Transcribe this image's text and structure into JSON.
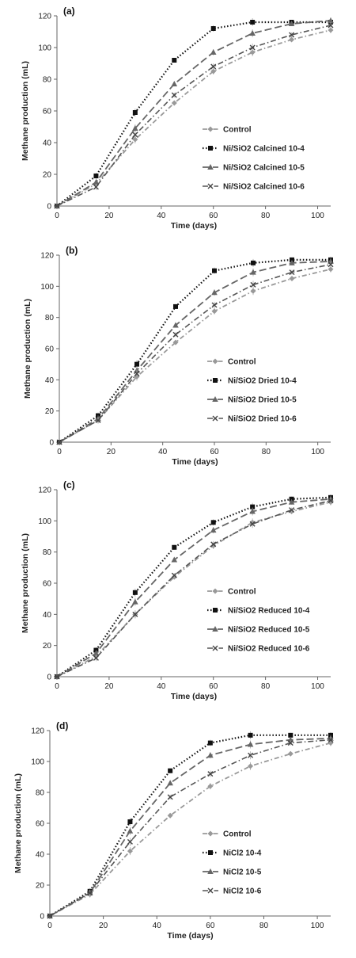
{
  "chart_data": [
    {
      "type": "line",
      "panel_label": "(a)",
      "xlabel": "Time (days)",
      "ylabel": "Methane production (mL)",
      "xlim": [
        0,
        105
      ],
      "ylim": [
        0,
        120
      ],
      "xticks": [
        0,
        20,
        40,
        60,
        80,
        100
      ],
      "yticks": [
        0,
        20,
        40,
        60,
        80,
        100,
        120
      ],
      "legend": "center-right",
      "x": [
        0,
        15,
        30,
        45,
        60,
        75,
        90,
        105
      ],
      "series": [
        {
          "name": "Control",
          "values": [
            0,
            14,
            42,
            65,
            85,
            97,
            105,
            111
          ]
        },
        {
          "name": "Ni/SiO2 Calcined  10-4",
          "values": [
            0,
            19,
            59,
            92,
            112,
            116,
            116,
            116
          ]
        },
        {
          "name": "Ni/SiO2 Calcined  10-5",
          "values": [
            0,
            15,
            49,
            77,
            97,
            109,
            115,
            117
          ]
        },
        {
          "name": "Ni/SiO2 Calcined  10-6",
          "values": [
            0,
            12,
            45,
            70,
            88,
            100,
            108,
            114
          ]
        }
      ]
    },
    {
      "type": "line",
      "panel_label": "(b)",
      "xlabel": "Time (days)",
      "ylabel": "Methane production (mL)",
      "xlim": [
        0,
        105
      ],
      "ylim": [
        0,
        120
      ],
      "xticks": [
        0,
        20,
        40,
        60,
        80,
        100
      ],
      "yticks": [
        0,
        20,
        40,
        60,
        80,
        100,
        120
      ],
      "legend": "center-right",
      "x": [
        0,
        15,
        30,
        45,
        60,
        75,
        90,
        105
      ],
      "series": [
        {
          "name": "Control",
          "values": [
            0,
            14,
            42,
            64,
            84,
            97,
            105,
            111
          ]
        },
        {
          "name": "Ni/SiO2 Dried  10-4",
          "values": [
            0,
            17,
            50,
            87,
            110,
            115,
            117,
            117
          ]
        },
        {
          "name": "Ni/SiO2 Dried  10-5",
          "values": [
            0,
            15,
            46,
            75,
            96,
            109,
            115,
            116
          ]
        },
        {
          "name": "Ni/SiO2 Dried  10-6",
          "values": [
            0,
            14,
            44,
            69,
            88,
            101,
            109,
            114
          ]
        }
      ]
    },
    {
      "type": "line",
      "panel_label": "(c)",
      "xlabel": "Time (days)",
      "ylabel": "Methane production (mL)",
      "xlim": [
        0,
        105
      ],
      "ylim": [
        0,
        120
      ],
      "xticks": [
        0,
        20,
        40,
        60,
        80,
        100
      ],
      "yticks": [
        0,
        20,
        40,
        60,
        80,
        100,
        120
      ],
      "legend": "center-right",
      "x": [
        0,
        15,
        30,
        45,
        60,
        75,
        90,
        105
      ],
      "series": [
        {
          "name": "Control",
          "values": [
            0,
            13,
            40,
            64,
            84,
            99,
            106,
            112
          ]
        },
        {
          "name": "Ni/SiO2 Reduced  10-4",
          "values": [
            0,
            17,
            54,
            83,
            99,
            109,
            114,
            115
          ]
        },
        {
          "name": "Ni/SiO2 Reduced  10-5",
          "values": [
            0,
            15,
            48,
            75,
            94,
            106,
            112,
            114
          ]
        },
        {
          "name": "Ni/SiO2 Reduced  10-6",
          "values": [
            0,
            12,
            40,
            65,
            85,
            98,
            107,
            113
          ]
        }
      ]
    },
    {
      "type": "line",
      "panel_label": "(d)",
      "xlabel": "Time (days)",
      "ylabel": "Methane production (mL)",
      "xlim": [
        0,
        105
      ],
      "ylim": [
        0,
        120
      ],
      "xticks": [
        0,
        20,
        40,
        60,
        80,
        100
      ],
      "yticks": [
        0,
        20,
        40,
        60,
        80,
        100,
        120
      ],
      "legend": "center-right",
      "x": [
        0,
        15,
        30,
        45,
        60,
        75,
        90,
        105
      ],
      "series": [
        {
          "name": "Control",
          "values": [
            0,
            14,
            42,
            65,
            84,
            97,
            105,
            112
          ]
        },
        {
          "name": "NiCl2  10-4",
          "values": [
            0,
            16,
            61,
            94,
            112,
            117,
            117,
            117
          ]
        },
        {
          "name": "NiCl2  10-5",
          "values": [
            0,
            15,
            55,
            86,
            104,
            111,
            114,
            115
          ]
        },
        {
          "name": "NiCl2  10-6",
          "values": [
            0,
            15,
            48,
            77,
            92,
            104,
            112,
            114
          ]
        }
      ]
    }
  ]
}
